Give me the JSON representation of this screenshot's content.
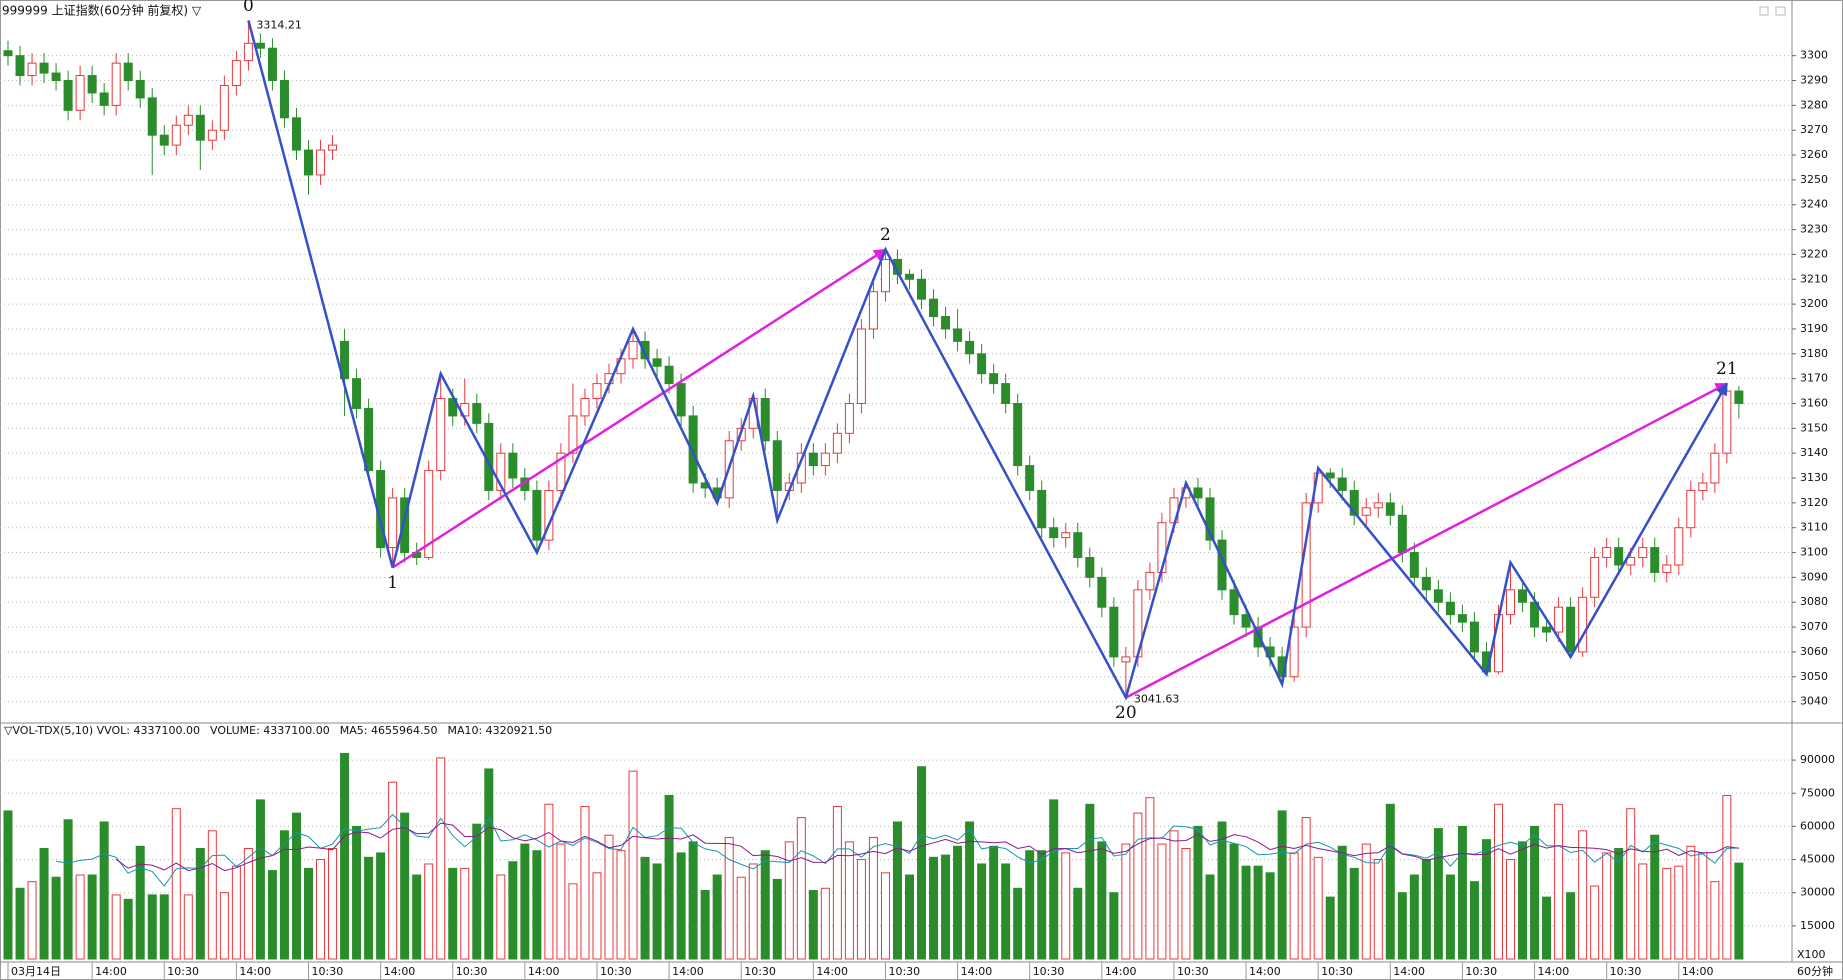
{
  "chart_data": [
    {
      "type": "candlestick",
      "title": "999999 上证指数(60分钟 前复权) ▽",
      "up_color": "#e8383d",
      "down_color": "#2a8c2a",
      "grid": true,
      "ylim": [
        3033,
        3320
      ],
      "yticks": [
        3040,
        3050,
        3060,
        3070,
        3080,
        3090,
        3100,
        3110,
        3120,
        3130,
        3140,
        3150,
        3160,
        3170,
        3180,
        3190,
        3200,
        3210,
        3220,
        3230,
        3240,
        3250,
        3260,
        3270,
        3280,
        3290,
        3300
      ],
      "open": [
        3302,
        3300,
        3292,
        3297,
        3293,
        3290,
        3278,
        3292,
        3285,
        3280,
        3297,
        3290,
        3283,
        3268,
        3264,
        3272,
        3276,
        3266,
        3270,
        3288,
        3298,
        3305,
        3303,
        3290,
        3275,
        3262,
        3252,
        3262,
        3185,
        3170,
        3158,
        3133,
        3102,
        3122,
        3100,
        3098,
        3133,
        3162,
        3155,
        3160,
        3152,
        3125,
        3140,
        3130,
        3125,
        3105,
        3125,
        3140,
        3155,
        3162,
        3168,
        3172,
        3178,
        3185,
        3178,
        3175,
        3168,
        3155,
        3128,
        3126,
        3122,
        3145,
        3150,
        3162,
        3145,
        3125,
        3128,
        3140,
        3135,
        3140,
        3148,
        3160,
        3190,
        3205,
        3218,
        3212,
        3210,
        3202,
        3195,
        3190,
        3185,
        3180,
        3172,
        3168,
        3160,
        3135,
        3125,
        3110,
        3106,
        3108,
        3098,
        3090,
        3078,
        3056,
        3058,
        3085,
        3092,
        3112,
        3122,
        3126,
        3122,
        3105,
        3085,
        3075,
        3070,
        3062,
        3058,
        3050,
        3070,
        3120,
        3132,
        3130,
        3125,
        3115,
        3118,
        3120,
        3115,
        3100,
        3090,
        3085,
        3080,
        3075,
        3072,
        3060,
        3052,
        3075,
        3085,
        3080,
        3070,
        3068,
        3078,
        3060,
        3082,
        3098,
        3102,
        3095,
        3098,
        3102,
        3092,
        3095,
        3110,
        3125,
        3128,
        3140,
        3165
      ],
      "high": [
        3306,
        3304,
        3301,
        3301,
        3297,
        3294,
        3296,
        3296,
        3289,
        3301,
        3301,
        3294,
        3287,
        3272,
        3276,
        3280,
        3280,
        3274,
        3292,
        3302,
        3314.21,
        3309,
        3307,
        3294,
        3279,
        3266,
        3266,
        3268,
        3190,
        3174,
        3162,
        3137,
        3126,
        3126,
        3104,
        3137,
        3172,
        3166,
        3170,
        3164,
        3156,
        3144,
        3144,
        3134,
        3129,
        3129,
        3144,
        3168,
        3166,
        3172,
        3176,
        3182,
        3190,
        3189,
        3182,
        3179,
        3172,
        3159,
        3132,
        3130,
        3149,
        3154,
        3163,
        3166,
        3149,
        3132,
        3144,
        3144,
        3144,
        3152,
        3164,
        3194,
        3209,
        3222,
        3222,
        3214,
        3214,
        3206,
        3199,
        3198,
        3189,
        3184,
        3176,
        3172,
        3164,
        3139,
        3129,
        3114,
        3112,
        3112,
        3102,
        3094,
        3082,
        3062,
        3089,
        3096,
        3116,
        3126,
        3128,
        3130,
        3126,
        3109,
        3089,
        3079,
        3074,
        3066,
        3062,
        3074,
        3124,
        3134,
        3134,
        3134,
        3129,
        3122,
        3124,
        3124,
        3119,
        3104,
        3094,
        3089,
        3084,
        3079,
        3076,
        3064,
        3079,
        3096,
        3089,
        3084,
        3074,
        3082,
        3082,
        3086,
        3102,
        3106,
        3106,
        3102,
        3106,
        3106,
        3099,
        3114,
        3129,
        3132,
        3144,
        3168,
        3167
      ],
      "low": [
        3296,
        3288,
        3288,
        3289,
        3286,
        3274,
        3274,
        3281,
        3276,
        3276,
        3286,
        3279,
        3252,
        3260,
        3260,
        3268,
        3254,
        3262,
        3266,
        3284,
        3294,
        3299,
        3286,
        3271,
        3258,
        3244,
        3248,
        3258,
        3155,
        3154,
        3129,
        3098,
        3094,
        3096,
        3095,
        3097,
        3129,
        3151,
        3151,
        3148,
        3121,
        3121,
        3126,
        3121,
        3100,
        3101,
        3121,
        3136,
        3151,
        3158,
        3164,
        3168,
        3174,
        3174,
        3171,
        3164,
        3151,
        3124,
        3122,
        3120,
        3118,
        3141,
        3146,
        3141,
        3113,
        3121,
        3124,
        3131,
        3131,
        3136,
        3144,
        3156,
        3186,
        3201,
        3208,
        3206,
        3198,
        3191,
        3186,
        3181,
        3176,
        3168,
        3164,
        3156,
        3131,
        3121,
        3106,
        3102,
        3102,
        3094,
        3086,
        3074,
        3054,
        3041.63,
        3054,
        3081,
        3088,
        3108,
        3118,
        3118,
        3101,
        3081,
        3071,
        3066,
        3058,
        3054,
        3047,
        3048,
        3066,
        3116,
        3126,
        3121,
        3111,
        3111,
        3114,
        3111,
        3096,
        3086,
        3081,
        3076,
        3071,
        3068,
        3056,
        3051,
        3051,
        3071,
        3076,
        3066,
        3064,
        3064,
        3058,
        3058,
        3078,
        3094,
        3091,
        3091,
        3094,
        3088,
        3088,
        3091,
        3106,
        3121,
        3124,
        3136,
        3154
      ],
      "close": [
        3300,
        3292,
        3297,
        3293,
        3290,
        3278,
        3292,
        3285,
        3280,
        3297,
        3290,
        3283,
        3268,
        3264,
        3272,
        3276,
        3266,
        3270,
        3288,
        3298,
        3305,
        3303,
        3290,
        3275,
        3262,
        3252,
        3262,
        3264,
        3170,
        3158,
        3133,
        3102,
        3122,
        3100,
        3098,
        3133,
        3162,
        3155,
        3160,
        3152,
        3125,
        3140,
        3130,
        3125,
        3105,
        3125,
        3140,
        3155,
        3162,
        3168,
        3172,
        3178,
        3185,
        3178,
        3175,
        3168,
        3155,
        3128,
        3126,
        3122,
        3145,
        3150,
        3162,
        3145,
        3125,
        3128,
        3140,
        3135,
        3140,
        3148,
        3160,
        3190,
        3205,
        3218,
        3212,
        3210,
        3202,
        3195,
        3190,
        3185,
        3180,
        3172,
        3168,
        3160,
        3135,
        3125,
        3110,
        3106,
        3108,
        3098,
        3090,
        3078,
        3058,
        3058,
        3085,
        3092,
        3112,
        3122,
        3126,
        3122,
        3105,
        3085,
        3075,
        3070,
        3062,
        3058,
        3050,
        3070,
        3120,
        3132,
        3130,
        3125,
        3115,
        3118,
        3120,
        3115,
        3100,
        3090,
        3085,
        3080,
        3075,
        3072,
        3060,
        3052,
        3075,
        3085,
        3080,
        3070,
        3068,
        3078,
        3060,
        3082,
        3098,
        3102,
        3095,
        3098,
        3102,
        3092,
        3095,
        3110,
        3125,
        3128,
        3140,
        3165,
        3160
      ],
      "zigzag": {
        "color": "#3650c8",
        "x": [
          20,
          32,
          36,
          44,
          52,
          59,
          62,
          64,
          73,
          93,
          98,
          106,
          109,
          123,
          125,
          130,
          143
        ],
        "values": [
          3314.21,
          3094,
          3172,
          3100,
          3190,
          3120,
          3163,
          3113,
          3222,
          3041.63,
          3128,
          3047,
          3134,
          3051,
          3096,
          3058,
          3168
        ]
      },
      "trend_lines": [
        {
          "color": "#e020e0",
          "x": [
            32,
            73
          ],
          "values": [
            3094,
            3222
          ]
        },
        {
          "color": "#e020e0",
          "x": [
            93,
            143
          ],
          "values": [
            3041.63,
            3168
          ]
        }
      ],
      "annotations": [
        {
          "text": "0",
          "x": 20,
          "at": "high"
        },
        {
          "text": "1",
          "x": 32,
          "at": "low"
        },
        {
          "text": "2",
          "x": 73,
          "at": "high"
        },
        {
          "text": "20",
          "x": 93,
          "at": "low"
        },
        {
          "text": "21",
          "x": 143,
          "at": "high"
        }
      ],
      "price_labels": [
        {
          "x": 20,
          "at": "high"
        },
        {
          "x": 93,
          "at": "low"
        }
      ]
    },
    {
      "type": "bar",
      "title": "▽VOL-TDX(5,10) VVOL: 4337100.00",
      "legend": [
        {
          "name": "VOLUME: 4337100.00",
          "color": "#1f6fd0"
        },
        {
          "name": "MA5: 4655964.50",
          "color": "#1796b0"
        },
        {
          "name": "MA10: 4320921.50",
          "color": "#8b1a8b"
        }
      ],
      "ylim": [
        0,
        100000
      ],
      "yticks": [
        15000,
        30000,
        45000,
        60000,
        75000,
        90000
      ],
      "grid": true,
      "unit_label": "X100",
      "period_label": "60分钟",
      "values": [
        67000,
        32000,
        35000,
        50000,
        37000,
        63000,
        38000,
        38000,
        62000,
        29000,
        27000,
        51000,
        29000,
        29000,
        68000,
        29000,
        50000,
        58000,
        30000,
        42000,
        50000,
        72000,
        40000,
        58000,
        66000,
        41000,
        45000,
        50000,
        93000,
        60000,
        46000,
        48000,
        80000,
        66000,
        38000,
        43000,
        91000,
        41000,
        41000,
        61000,
        86000,
        38000,
        44000,
        52000,
        49000,
        70000,
        52000,
        34000,
        69000,
        39000,
        56000,
        49000,
        85000,
        46000,
        43000,
        74000,
        48000,
        53000,
        31000,
        38000,
        55000,
        37000,
        43000,
        49000,
        36000,
        53000,
        64000,
        31000,
        32000,
        69000,
        53000,
        45000,
        55000,
        39000,
        62000,
        38000,
        87000,
        46000,
        47000,
        51000,
        62000,
        43000,
        51000,
        43000,
        32000,
        49000,
        49000,
        72000,
        48000,
        32000,
        70000,
        53000,
        30000,
        52000,
        66000,
        73000,
        52000,
        58000,
        50000,
        60000,
        38000,
        62000,
        52000,
        42000,
        42000,
        39000,
        67000,
        48000,
        64000,
        46000,
        28000,
        51000,
        41000,
        52000,
        45000,
        70000,
        30000,
        38000,
        45000,
        59000,
        38000,
        60000,
        35000,
        54000,
        70000,
        45000,
        53000,
        60000,
        28000,
        70000,
        30000,
        58000,
        33000,
        48000,
        50000,
        68000,
        43000,
        56000,
        41000,
        42000,
        51000,
        48000,
        35000,
        74000,
        43371
      ],
      "xticks": [
        {
          "value": 0,
          "label": "03月14日"
        },
        {
          "value": 7,
          "label": "14:00"
        },
        {
          "value": 13,
          "label": "10:30"
        },
        {
          "value": 19,
          "label": "14:00"
        },
        {
          "value": 25,
          "label": "10:30"
        },
        {
          "value": 31,
          "label": "14:00"
        },
        {
          "value": 37,
          "label": "10:30"
        },
        {
          "value": 43,
          "label": "14:00"
        },
        {
          "value": 49,
          "label": "10:30"
        },
        {
          "value": 55,
          "label": "14:00"
        },
        {
          "value": 61,
          "label": "10:30"
        },
        {
          "value": 67,
          "label": "14:00"
        },
        {
          "value": 73,
          "label": "10:30"
        },
        {
          "value": 79,
          "label": "14:00"
        },
        {
          "value": 85,
          "label": "10:30"
        },
        {
          "value": 91,
          "label": "14:00"
        },
        {
          "value": 97,
          "label": "10:30"
        },
        {
          "value": 103,
          "label": "14:00"
        },
        {
          "value": 109,
          "label": "10:30"
        },
        {
          "value": 115,
          "label": "14:00"
        },
        {
          "value": 121,
          "label": "10:30"
        },
        {
          "value": 127,
          "label": "14:00"
        },
        {
          "value": 133,
          "label": "10:30"
        },
        {
          "value": 139,
          "label": "14:00"
        }
      ]
    }
  ]
}
